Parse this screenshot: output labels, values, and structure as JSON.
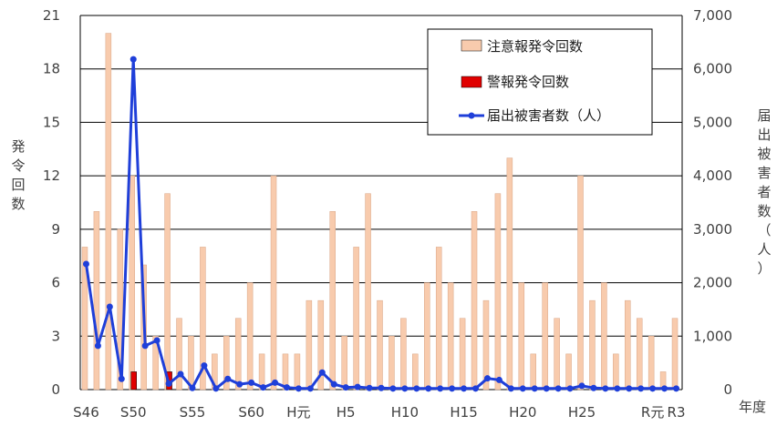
{
  "chart_data": {
    "type": "bar",
    "x_tick_labels": [
      "S46",
      "S50",
      "S55",
      "S60",
      "H元",
      "H5",
      "H10",
      "H15",
      "H20",
      "H25",
      "R元",
      "R3"
    ],
    "x_tick_years": [
      1971,
      1975,
      1980,
      1985,
      1989,
      1993,
      1998,
      2003,
      2008,
      2013,
      2019,
      2021
    ],
    "years": [
      1971,
      1972,
      1973,
      1974,
      1975,
      1976,
      1977,
      1978,
      1979,
      1980,
      1981,
      1982,
      1983,
      1984,
      1985,
      1986,
      1987,
      1988,
      1989,
      1990,
      1991,
      1992,
      1993,
      1994,
      1995,
      1996,
      1997,
      1998,
      1999,
      2000,
      2001,
      2002,
      2003,
      2004,
      2005,
      2006,
      2007,
      2008,
      2009,
      2010,
      2011,
      2012,
      2013,
      2014,
      2015,
      2016,
      2017,
      2018,
      2019,
      2020,
      2021
    ],
    "left_axis": {
      "label": "発令回数",
      "ylim": [
        0,
        21
      ],
      "ticks": [
        0,
        3,
        6,
        9,
        12,
        15,
        18,
        21
      ]
    },
    "right_axis": {
      "label": "届出被害者数（人）",
      "ylim": [
        0,
        7000
      ],
      "ticks": [
        "0",
        "1,000",
        "2,000",
        "3,000",
        "4,000",
        "5,000",
        "6,000",
        "7,000"
      ]
    },
    "xlabel": "年度",
    "legend": {
      "position": "top-right"
    },
    "series": [
      {
        "name": "注意報発令回数",
        "type": "bar",
        "axis": "left",
        "color": "#F8CBAD",
        "values": [
          8,
          10,
          20,
          9,
          12,
          7,
          3,
          11,
          4,
          3,
          8,
          2,
          3,
          4,
          6,
          2,
          12,
          2,
          2,
          5,
          5,
          10,
          3,
          8,
          11,
          5,
          3,
          4,
          2,
          6,
          8,
          6,
          4,
          10,
          5,
          11,
          13,
          6,
          2,
          6,
          4,
          2,
          12,
          5,
          6,
          2,
          5,
          4,
          3,
          1,
          4
        ]
      },
      {
        "name": "警報発令回数",
        "type": "bar",
        "axis": "left",
        "color": "#E00000",
        "values": [
          0,
          0,
          0,
          0,
          1,
          0,
          0,
          1,
          0,
          0,
          0,
          0,
          0,
          0,
          0,
          0,
          0,
          0,
          0,
          0,
          0,
          0,
          0,
          0,
          0,
          0,
          0,
          0,
          0,
          0,
          0,
          0,
          0,
          0,
          0,
          0,
          0,
          0,
          0,
          0,
          0,
          0,
          0,
          0,
          0,
          0,
          0,
          0,
          0,
          0,
          0
        ]
      },
      {
        "name": "届出被害者数（人）",
        "type": "line",
        "axis": "right",
        "color": "#1F3FD9",
        "values": [
          2350,
          820,
          1550,
          200,
          6180,
          820,
          920,
          110,
          290,
          30,
          450,
          20,
          200,
          100,
          130,
          40,
          130,
          40,
          20,
          20,
          320,
          100,
          40,
          50,
          30,
          30,
          20,
          20,
          20,
          20,
          20,
          20,
          20,
          20,
          210,
          180,
          20,
          20,
          20,
          20,
          20,
          20,
          70,
          30,
          20,
          20,
          20,
          20,
          20,
          20,
          20
        ]
      }
    ]
  }
}
